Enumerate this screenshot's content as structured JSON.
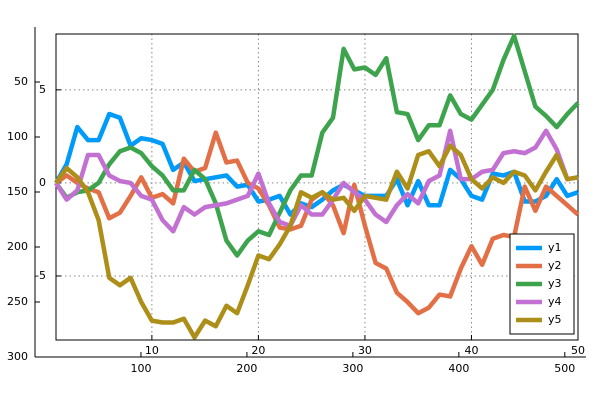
{
  "chart_data": [
    {
      "type": "line",
      "x": [
        1,
        2,
        3,
        4,
        5,
        6,
        7,
        8,
        9,
        10,
        11,
        12,
        13,
        14,
        15,
        16,
        17,
        18,
        19,
        20,
        21,
        22,
        23,
        24,
        25,
        26,
        27,
        28,
        29,
        30,
        31,
        32,
        33,
        34,
        35,
        36,
        37,
        38,
        39,
        40,
        41,
        42,
        43,
        44,
        45,
        46,
        47,
        48,
        49,
        50
      ],
      "series": [
        {
          "name": "y1",
          "color": "#009af9",
          "values": [
            0,
            1.0,
            3.0,
            2.3,
            2.3,
            3.7,
            3.5,
            2.0,
            2.4,
            2.3,
            2.1,
            0.7,
            1.1,
            0.1,
            0.2,
            0.3,
            0.4,
            -0.2,
            -0.1,
            -1.0,
            -0.9,
            -0.7,
            -1.7,
            -1.1,
            -1.3,
            -0.9,
            -0.4,
            -0.1,
            -0.4,
            -0.7,
            -0.7,
            -0.7,
            0.2,
            -1.2,
            0.1,
            -1.2,
            -1.2,
            0.7,
            0.2,
            -0.7,
            -0.9,
            0.5,
            0.4,
            0.6,
            -1.0,
            -1.0,
            -0.7,
            0.2,
            -0.7,
            -0.5
          ]
        },
        {
          "name": "y2",
          "color": "#e26f46",
          "values": [
            0,
            0.4,
            0,
            -0.3,
            -0.5,
            -1.9,
            -1.6,
            -0.7,
            0.3,
            -0.8,
            -0.6,
            -1.1,
            1.3,
            0.6,
            0.8,
            2.7,
            1.1,
            1.2,
            0,
            -0.3,
            -1.2,
            -2.4,
            -2.5,
            -2.3,
            -0.9,
            -0.5,
            -1.2,
            -2.7,
            -0.1,
            -2.3,
            -4.3,
            -4.6,
            -5.9,
            -6.4,
            -7.0,
            -6.7,
            -6.0,
            -6.1,
            -4.6,
            -3.4,
            -4.4,
            -3.0,
            -2.8,
            -2.9,
            -0.2,
            -1.5,
            -0.2,
            -0.7,
            -1.2,
            -1.7
          ]
        },
        {
          "name": "y3",
          "color": "#3da44d",
          "values": [
            0,
            -0.8,
            -0.5,
            -0.4,
            0,
            1.0,
            1.7,
            1.9,
            1.6,
            0.9,
            0.4,
            -0.4,
            -0.4,
            0.7,
            0.2,
            -1.1,
            -3.1,
            -3.9,
            -3.1,
            -2.6,
            -2.8,
            -1.6,
            -0.4,
            0.4,
            0.4,
            2.7,
            3.5,
            7.2,
            6.1,
            6.2,
            5.8,
            6.7,
            3.8,
            3.7,
            2.3,
            3.1,
            3.1,
            4.7,
            3.7,
            3.4,
            4.2,
            5.0,
            6.6,
            7.9,
            6.0,
            4.1,
            3.6,
            3.0,
            3.7,
            4.3
          ]
        },
        {
          "name": "y4",
          "color": "#c271d2",
          "values": [
            0,
            -0.9,
            -0.4,
            1.5,
            1.5,
            0.4,
            0.1,
            0,
            -0.7,
            -0.9,
            -2.0,
            -2.6,
            -1.3,
            -1.7,
            -1.3,
            -1.2,
            -1.1,
            -0.9,
            -0.7,
            0.5,
            -1.1,
            -2.1,
            -2.3,
            -1.2,
            -1.7,
            -1.7,
            -0.9,
            0,
            -0.5,
            -0.9,
            -1.7,
            -2.1,
            -1.2,
            -0.6,
            -1.1,
            0.1,
            0.4,
            2.8,
            0.2,
            0.2,
            0.6,
            0.7,
            1.6,
            1.7,
            1.6,
            1.9,
            2.8,
            1.8,
            0.2,
            0.3
          ]
        },
        {
          "name": "y5",
          "color": "#ac8e18",
          "values": [
            0,
            0.8,
            0.3,
            -0.5,
            -2.0,
            -5.1,
            -5.5,
            -5.1,
            -6.4,
            -7.4,
            -7.5,
            -7.5,
            -7.3,
            -8.3,
            -7.4,
            -7.7,
            -6.6,
            -7.0,
            -5.5,
            -3.9,
            -4.1,
            -3.3,
            -2.3,
            -0.5,
            -0.8,
            -0.5,
            -0.9,
            -0.8,
            -1.5,
            -0.7,
            -0.8,
            -0.9,
            0.6,
            -0.3,
            1.5,
            1.7,
            0.9,
            2.0,
            1.5,
            0.2,
            -0.3,
            0.3,
            0,
            0.6,
            0.4,
            -0.4,
            0.6,
            1.5,
            0.2,
            0.3
          ]
        }
      ],
      "xlim": [
        1,
        50
      ],
      "ylim": [
        -8.44,
        8.0
      ],
      "xticks": [
        10,
        20,
        30,
        40,
        50
      ],
      "yticks": [
        -5,
        0,
        5
      ],
      "grid": true,
      "legend": "bottom right"
    },
    {
      "type": "line",
      "series": [],
      "xlim": [
        0,
        520
      ],
      "ylim": [
        0,
        300
      ],
      "y_inverted": true,
      "xticks": [
        100,
        200,
        300,
        400,
        500
      ],
      "yticks": [
        50,
        100,
        150,
        200,
        250,
        300
      ],
      "grid": false
    }
  ]
}
